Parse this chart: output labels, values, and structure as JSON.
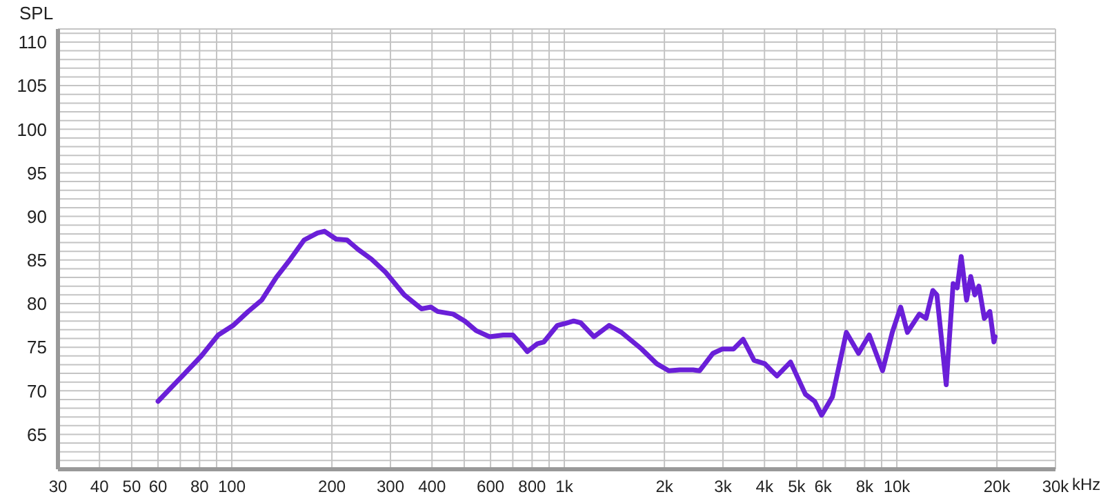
{
  "chart_data": {
    "type": "line",
    "ylabel": "SPL",
    "log": "x",
    "grid": true,
    "xlim": [
      30,
      30000
    ],
    "xticks": [
      30,
      40,
      50,
      60,
      {
        "value": 70,
        "label": null
      },
      80,
      {
        "value": 90,
        "label": null
      },
      100,
      200,
      300,
      400,
      {
        "value": 500,
        "label": null
      },
      600,
      {
        "value": 700,
        "label": null
      },
      800,
      {
        "value": 900,
        "label": null
      },
      {
        "value": 1000,
        "label": "1k"
      },
      {
        "value": 2000,
        "label": "2k"
      },
      {
        "value": 3000,
        "label": "3k"
      },
      {
        "value": 4000,
        "label": "4k"
      },
      {
        "value": 5000,
        "label": "5k"
      },
      {
        "value": 6000,
        "label": "6k"
      },
      {
        "value": 7000,
        "label": null
      },
      {
        "value": 8000,
        "label": "8k"
      },
      {
        "value": 9000,
        "label": null
      },
      {
        "value": 10000,
        "label": "10k"
      },
      {
        "value": 20000,
        "label": "20k"
      },
      {
        "value": 30000,
        "label": "30k"
      }
    ],
    "xlabel": "kHz",
    "ylim": [
      61,
      111.5
    ],
    "yticks": [
      {
        "value": 61,
        "label": null
      },
      {
        "value": 62,
        "label": null
      },
      {
        "value": 63,
        "label": null
      },
      {
        "value": 64,
        "label": null
      },
      65,
      {
        "value": 66,
        "label": null
      },
      {
        "value": 67,
        "label": null
      },
      {
        "value": 68,
        "label": null
      },
      {
        "value": 69,
        "label": null
      },
      70,
      {
        "value": 71,
        "label": null
      },
      {
        "value": 72,
        "label": null
      },
      {
        "value": 73,
        "label": null
      },
      {
        "value": 74,
        "label": null
      },
      75,
      {
        "value": 76,
        "label": null
      },
      {
        "value": 77,
        "label": null
      },
      {
        "value": 78,
        "label": null
      },
      {
        "value": 79,
        "label": null
      },
      80,
      {
        "value": 81,
        "label": null
      },
      {
        "value": 82,
        "label": null
      },
      {
        "value": 83,
        "label": null
      },
      {
        "value": 84,
        "label": null
      },
      85,
      {
        "value": 86,
        "label": null
      },
      {
        "value": 87,
        "label": null
      },
      {
        "value": 88,
        "label": null
      },
      {
        "value": 89,
        "label": null
      },
      90,
      {
        "value": 91,
        "label": null
      },
      {
        "value": 92,
        "label": null
      },
      {
        "value": 93,
        "label": null
      },
      {
        "value": 94,
        "label": null
      },
      95,
      {
        "value": 96,
        "label": null
      },
      {
        "value": 97,
        "label": null
      },
      {
        "value": 98,
        "label": null
      },
      {
        "value": 99,
        "label": null
      },
      100,
      {
        "value": 101,
        "label": null
      },
      {
        "value": 102,
        "label": null
      },
      {
        "value": 103,
        "label": null
      },
      {
        "value": 104,
        "label": null
      },
      105,
      {
        "value": 106,
        "label": null
      },
      {
        "value": 107,
        "label": null
      },
      {
        "value": 108,
        "label": null
      },
      {
        "value": 109,
        "label": null
      },
      110,
      {
        "value": 111,
        "label": null
      }
    ],
    "x": [
      60,
      71,
      81,
      91,
      101,
      112,
      123,
      136,
      150,
      165,
      181,
      190,
      206,
      222,
      240,
      263,
      290,
      330,
      372,
      397,
      416,
      463,
      502,
      543,
      596,
      655,
      700,
      740,
      774,
      830,
      868,
      953,
      1000,
      1067,
      1120,
      1228,
      1364,
      1485,
      1707,
      1897,
      2062,
      2222,
      2440,
      2553,
      2800,
      2990,
      3230,
      3450,
      3720,
      4010,
      4200,
      4360,
      4790,
      5310,
      5660,
      5940,
      6400,
      7050,
      7670,
      8260,
      9060,
      9690,
      10270,
      10760,
      11690,
      12240,
      12830,
      13200,
      14080,
      14770,
      15190,
      15620,
      16210,
      16680,
      17160,
      17650,
      18330,
      19040,
      19590,
      19760
    ],
    "series": [
      {
        "color": "#6a1fd8",
        "values": [
          68.8,
          71.7,
          74.0,
          76.4,
          77.5,
          79.1,
          80.4,
          83.0,
          85.1,
          87.3,
          88.1,
          88.3,
          87.4,
          87.3,
          86.2,
          85.1,
          83.6,
          81.0,
          79.4,
          79.6,
          79.1,
          78.8,
          78.0,
          76.9,
          76.2,
          76.4,
          76.4,
          75.4,
          74.5,
          75.4,
          75.6,
          77.5,
          77.7,
          78.0,
          77.8,
          76.2,
          77.5,
          76.7,
          74.8,
          73.1,
          72.3,
          72.4,
          72.4,
          72.3,
          74.3,
          74.8,
          74.8,
          75.9,
          73.5,
          73.1,
          72.3,
          71.7,
          73.3,
          69.6,
          68.8,
          67.2,
          69.3,
          76.7,
          74.3,
          76.4,
          72.3,
          76.7,
          79.6,
          76.7,
          78.8,
          78.3,
          81.5,
          81.0,
          70.7,
          82.3,
          81.8,
          85.4,
          80.4,
          83.1,
          81.0,
          82.0,
          78.3,
          79.1,
          75.6,
          76.2
        ]
      }
    ]
  }
}
